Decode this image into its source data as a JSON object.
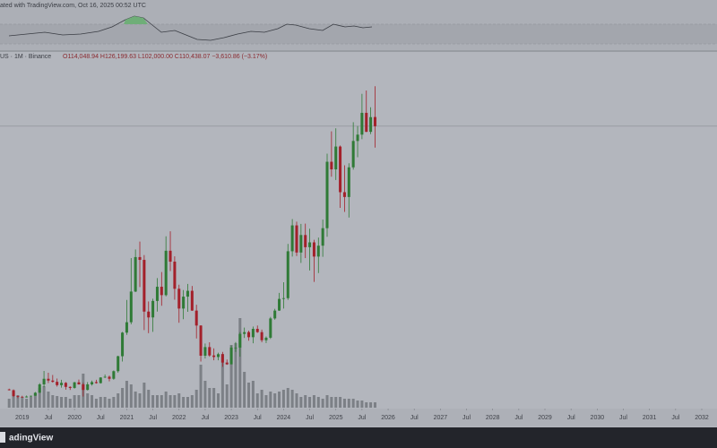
{
  "chart_data": {
    "type": "candlestick",
    "snapshot": "ated with TradingView.com, Oct 16, 2025 00:52 UTC",
    "symbol": "US · 1M · Binance",
    "ohlc_text": "O114,048.94 H126,199.63 L102,000.00 C110,438.07 −3,610.86 (−3.17%)",
    "brand": "adingView",
    "up_color": "#2f7a36",
    "down_color": "#a3202a",
    "volume_color": "#6a6d74",
    "xlim": [
      -2.1,
      162.5
    ],
    "ylim": [
      -600,
      139000
    ],
    "volume_lim": [
      0,
      100
    ],
    "xticks": [
      {
        "value": 3,
        "label": "2019"
      },
      {
        "value": 9,
        "label": "Jul"
      },
      {
        "value": 15,
        "label": "2020"
      },
      {
        "value": 21,
        "label": "Jul"
      },
      {
        "value": 27,
        "label": "2021"
      },
      {
        "value": 33,
        "label": "Jul"
      },
      {
        "value": 39,
        "label": "2022"
      },
      {
        "value": 45,
        "label": "Jul"
      },
      {
        "value": 51,
        "label": "2023"
      },
      {
        "value": 57,
        "label": "Jul"
      },
      {
        "value": 63,
        "label": "2024"
      },
      {
        "value": 69,
        "label": "Jul"
      },
      {
        "value": 75,
        "label": "2025"
      },
      {
        "value": 81,
        "label": "Jul"
      },
      {
        "value": 87,
        "label": "2026"
      },
      {
        "value": 93,
        "label": "Jul"
      },
      {
        "value": 99,
        "label": "2027"
      },
      {
        "value": 105,
        "label": "Jul"
      },
      {
        "value": 111,
        "label": "2028"
      },
      {
        "value": 117,
        "label": "Jul"
      },
      {
        "value": 123,
        "label": "2029"
      },
      {
        "value": 129,
        "label": "Jul"
      },
      {
        "value": 135,
        "label": "2030"
      },
      {
        "value": 141,
        "label": "Jul"
      },
      {
        "value": 147,
        "label": "2031"
      },
      {
        "value": 153,
        "label": "Jul"
      },
      {
        "value": 159,
        "label": "2032"
      }
    ],
    "candles": [
      [
        6600,
        6900,
        6200,
        6300
      ],
      [
        6300,
        6600,
        3600,
        4000
      ],
      [
        4000,
        4200,
        3150,
        3700
      ],
      [
        3700,
        4100,
        3400,
        3450
      ],
      [
        3450,
        4200,
        3400,
        3800
      ],
      [
        3800,
        4100,
        3700,
        4100
      ],
      [
        4100,
        5600,
        4100,
        5300
      ],
      [
        5300,
        9100,
        5300,
        8600
      ],
      [
        8600,
        13900,
        7500,
        10800
      ],
      [
        10800,
        13200,
        9100,
        10100
      ],
      [
        10100,
        12300,
        9300,
        9600
      ],
      [
        9600,
        10900,
        7700,
        8300
      ],
      [
        8300,
        10400,
        7300,
        9200
      ],
      [
        9200,
        9500,
        6500,
        7600
      ],
      [
        7600,
        7800,
        6400,
        7200
      ],
      [
        7200,
        9600,
        6900,
        9400
      ],
      [
        9400,
        10500,
        8500,
        8600
      ],
      [
        8600,
        9200,
        3800,
        6400
      ],
      [
        6400,
        9500,
        6200,
        8600
      ],
      [
        8600,
        10100,
        8100,
        9500
      ],
      [
        9500,
        10400,
        8900,
        9100
      ],
      [
        9100,
        11400,
        8900,
        11300
      ],
      [
        11300,
        12500,
        11100,
        11600
      ],
      [
        11600,
        12100,
        9800,
        10800
      ],
      [
        10800,
        14100,
        10400,
        13800
      ],
      [
        13800,
        19900,
        13200,
        19700
      ],
      [
        19700,
        29300,
        17600,
        29000
      ],
      [
        29000,
        41900,
        28100,
        33100
      ],
      [
        33100,
        58400,
        32300,
        45200
      ],
      [
        45200,
        61800,
        45000,
        58800
      ],
      [
        58800,
        64900,
        47000,
        57700
      ],
      [
        57700,
        59600,
        30000,
        37300
      ],
      [
        37300,
        41300,
        28800,
        35000
      ],
      [
        35000,
        42400,
        29300,
        41500
      ],
      [
        41500,
        50500,
        37300,
        47100
      ],
      [
        47100,
        52900,
        39600,
        43800
      ],
      [
        43800,
        67000,
        43300,
        61300
      ],
      [
        61300,
        69000,
        53300,
        57000
      ],
      [
        57000,
        59100,
        42000,
        46300
      ],
      [
        46300,
        47900,
        32900,
        38500
      ],
      [
        38500,
        45800,
        34300,
        43200
      ],
      [
        43200,
        48200,
        37200,
        45500
      ],
      [
        45500,
        47400,
        37600,
        37700
      ],
      [
        37700,
        40000,
        26700,
        31800
      ],
      [
        31800,
        31900,
        17600,
        19900
      ],
      [
        19900,
        24700,
        18800,
        23300
      ],
      [
        23300,
        25200,
        19500,
        20000
      ],
      [
        20000,
        22800,
        18100,
        19400
      ],
      [
        19400,
        21100,
        18100,
        20500
      ],
      [
        20500,
        21400,
        15500,
        17200
      ],
      [
        17200,
        18400,
        16300,
        16500
      ],
      [
        16500,
        23900,
        16500,
        23100
      ],
      [
        23100,
        25300,
        21400,
        23100
      ],
      [
        23100,
        29200,
        19500,
        28500
      ],
      [
        28500,
        31000,
        26900,
        29200
      ],
      [
        29200,
        29800,
        25800,
        27200
      ],
      [
        27200,
        31400,
        24800,
        30500
      ],
      [
        30500,
        31800,
        28900,
        29200
      ],
      [
        29200,
        30200,
        25200,
        26000
      ],
      [
        26000,
        27500,
        24900,
        27000
      ],
      [
        27000,
        35200,
        26500,
        34600
      ],
      [
        34600,
        38400,
        34100,
        37700
      ],
      [
        37700,
        44700,
        37600,
        42300
      ],
      [
        42300,
        48900,
        38500,
        42600
      ],
      [
        42600,
        64000,
        41900,
        61100
      ],
      [
        61100,
        73800,
        59000,
        71300
      ],
      [
        71300,
        72800,
        59200,
        60600
      ],
      [
        60600,
        71900,
        56500,
        67500
      ],
      [
        67500,
        72000,
        58400,
        62700
      ],
      [
        62700,
        70000,
        53500,
        64600
      ],
      [
        64600,
        65600,
        49000,
        59000
      ],
      [
        59000,
        66500,
        52500,
        63300
      ],
      [
        63300,
        73600,
        58900,
        70200
      ],
      [
        70200,
        99600,
        66800,
        96400
      ],
      [
        96400,
        108400,
        90500,
        93400
      ],
      [
        93400,
        109600,
        89200,
        102400
      ],
      [
        102400,
        102800,
        78200,
        84400
      ],
      [
        84400,
        95000,
        76600,
        82500
      ],
      [
        82500,
        95800,
        74400,
        94200
      ],
      [
        94200,
        112000,
        93300,
        104600
      ],
      [
        104600,
        110500,
        98200,
        107100
      ],
      [
        107100,
        123200,
        105300,
        115700
      ],
      [
        115700,
        124500,
        108100,
        108200
      ],
      [
        108200,
        117900,
        107300,
        114000
      ],
      [
        114048.94,
        126199.63,
        102000,
        110438.07
      ]
    ],
    "volume": [
      10,
      18,
      14,
      12,
      10,
      12,
      16,
      22,
      24,
      18,
      14,
      13,
      12,
      12,
      10,
      14,
      14,
      38,
      16,
      14,
      10,
      12,
      12,
      10,
      12,
      16,
      22,
      30,
      26,
      18,
      16,
      28,
      20,
      14,
      14,
      14,
      18,
      14,
      14,
      16,
      12,
      12,
      14,
      20,
      48,
      30,
      22,
      22,
      16,
      60,
      26,
      70,
      72,
      100,
      40,
      28,
      30,
      16,
      20,
      14,
      18,
      16,
      18,
      20,
      22,
      20,
      16,
      12,
      14,
      12,
      14,
      12,
      10,
      14,
      12,
      12,
      12,
      10,
      10,
      10,
      8,
      8,
      6,
      6,
      6
    ]
  }
}
